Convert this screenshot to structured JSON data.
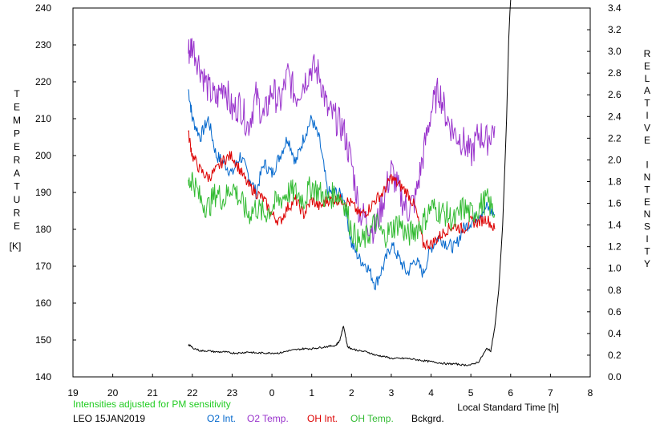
{
  "chart_data": {
    "type": "line",
    "xlabel": "Local Standard Time [h]",
    "ylabel_left_letters": [
      "T",
      "E",
      "M",
      "P",
      "E",
      "R",
      "A",
      "T",
      "U",
      "R",
      "E"
    ],
    "ylabel_left_unit": "[K]",
    "ylabel_right_letters": [
      "R",
      "E",
      "L",
      "A",
      "T",
      "I",
      "V",
      "E",
      "",
      "I",
      "N",
      "T",
      "E",
      "N",
      "S",
      "I",
      "T",
      "Y"
    ],
    "x_ticks": [
      "19",
      "20",
      "21",
      "22",
      "23",
      "0",
      "1",
      "2",
      "3",
      "4",
      "5",
      "6",
      "7",
      "8"
    ],
    "y_left_ticks": [
      "140",
      "150",
      "160",
      "170",
      "180",
      "190",
      "200",
      "210",
      "220",
      "230",
      "240"
    ],
    "y_right_ticks": [
      "0.0",
      "0.2",
      "0.4",
      "0.6",
      "0.8",
      "1.0",
      "1.2",
      "1.4",
      "1.6",
      "1.8",
      "2.0",
      "2.2",
      "2.4",
      "2.6",
      "2.8",
      "3.0",
      "3.2",
      "3.4"
    ],
    "xlim": [
      19,
      32
    ],
    "ylim_left": [
      140,
      240
    ],
    "ylim_right": [
      0,
      3.4
    ],
    "grid": false,
    "note": "Intensities adjusted for PM sensitivity",
    "station_date": "LEO 15JAN2019",
    "series": [
      {
        "name": "O2 Int.",
        "color": "#0066cc",
        "axis": "left",
        "x": [
          21.9,
          22.0,
          22.2,
          22.4,
          22.6,
          22.8,
          23.0,
          23.2,
          23.4,
          23.6,
          23.8,
          24.0,
          24.2,
          24.4,
          24.6,
          24.8,
          25.0,
          25.2,
          25.4,
          25.6,
          25.8,
          26.0,
          26.2,
          26.4,
          26.6,
          26.8,
          27.0,
          27.2,
          27.4,
          27.6,
          27.8,
          28.0,
          28.2,
          28.4,
          28.6,
          28.8,
          29.0,
          29.2,
          29.4,
          29.6
        ],
        "y": [
          218,
          210,
          205,
          210,
          200,
          198,
          195,
          200,
          195,
          190,
          198,
          195,
          200,
          205,
          198,
          205,
          210,
          204,
          190,
          190,
          189,
          176,
          172,
          170,
          165,
          170,
          176,
          172,
          168,
          172,
          168,
          175,
          178,
          176,
          175,
          180,
          182,
          184,
          186,
          184
        ]
      },
      {
        "name": "O2 Temp.",
        "color": "#9933cc",
        "axis": "left",
        "x": [
          21.9,
          22.0,
          22.2,
          22.4,
          22.6,
          22.8,
          23.0,
          23.2,
          23.4,
          23.6,
          23.8,
          24.0,
          24.2,
          24.4,
          24.6,
          24.8,
          25.0,
          25.2,
          25.4,
          25.6,
          25.8,
          26.0,
          26.2,
          26.4,
          26.6,
          26.8,
          27.0,
          27.2,
          27.4,
          27.6,
          27.8,
          28.0,
          28.2,
          28.4,
          28.6,
          28.8,
          29.0,
          29.2,
          29.4,
          29.6
        ],
        "y": [
          228,
          230,
          224,
          218,
          215,
          220,
          212,
          214,
          208,
          216,
          210,
          218,
          214,
          222,
          216,
          220,
          224,
          222,
          212,
          210,
          207,
          198,
          185,
          182,
          180,
          188,
          196,
          190,
          185,
          188,
          200,
          212,
          218,
          210,
          206,
          204,
          200,
          206,
          204,
          208
        ]
      },
      {
        "name": "OH Int.",
        "color": "#dd0000",
        "axis": "left",
        "x": [
          21.9,
          22.0,
          22.2,
          22.4,
          22.6,
          22.8,
          23.0,
          23.2,
          23.4,
          23.6,
          23.8,
          24.0,
          24.2,
          24.4,
          24.6,
          24.8,
          25.0,
          25.2,
          25.4,
          25.6,
          25.8,
          26.0,
          26.2,
          26.4,
          26.6,
          26.8,
          27.0,
          27.2,
          27.4,
          27.6,
          27.8,
          28.0,
          28.2,
          28.4,
          28.6,
          28.8,
          29.0,
          29.2,
          29.4,
          29.6
        ],
        "y": [
          206,
          200,
          196,
          194,
          196,
          199,
          200,
          196,
          192,
          190,
          188,
          184,
          182,
          186,
          188,
          184,
          188,
          186,
          188,
          188,
          188,
          187,
          184,
          185,
          188,
          190,
          194,
          192,
          190,
          186,
          176,
          176,
          178,
          180,
          181,
          180,
          182,
          182,
          183,
          180
        ]
      },
      {
        "name": "OH Temp.",
        "color": "#33bb33",
        "axis": "left",
        "x": [
          21.9,
          22.0,
          22.2,
          22.4,
          22.6,
          22.8,
          23.0,
          23.2,
          23.4,
          23.6,
          23.8,
          24.0,
          24.2,
          24.4,
          24.6,
          24.8,
          25.0,
          25.2,
          25.4,
          25.6,
          25.8,
          26.0,
          26.2,
          26.4,
          26.6,
          26.8,
          27.0,
          27.2,
          27.4,
          27.6,
          27.8,
          28.0,
          28.2,
          28.4,
          28.6,
          28.8,
          29.0,
          29.2,
          29.4,
          29.6
        ],
        "y": [
          192,
          194,
          188,
          186,
          190,
          188,
          192,
          188,
          184,
          186,
          184,
          186,
          188,
          190,
          190,
          188,
          192,
          190,
          188,
          190,
          188,
          180,
          176,
          178,
          182,
          178,
          180,
          182,
          178,
          180,
          182,
          186,
          185,
          184,
          182,
          186,
          184,
          186,
          188,
          184
        ]
      },
      {
        "name": "Bckgrd.",
        "color": "#000000",
        "axis": "right",
        "x": [
          21.9,
          22.0,
          22.2,
          22.4,
          22.6,
          22.8,
          23.0,
          23.2,
          23.4,
          23.6,
          23.8,
          24.0,
          24.2,
          24.4,
          24.6,
          24.8,
          25.0,
          25.2,
          25.4,
          25.6,
          25.7,
          25.8,
          25.9,
          26.0,
          26.2,
          26.4,
          26.6,
          26.8,
          27.0,
          27.2,
          27.4,
          27.6,
          27.8,
          28.0,
          28.2,
          28.4,
          28.6,
          28.8,
          29.0,
          29.2,
          29.4,
          29.5,
          29.6,
          29.7,
          29.8,
          29.9,
          29.95,
          30.0
        ],
        "y": [
          0.3,
          0.27,
          0.24,
          0.24,
          0.23,
          0.23,
          0.22,
          0.22,
          0.23,
          0.22,
          0.22,
          0.22,
          0.22,
          0.24,
          0.25,
          0.26,
          0.26,
          0.27,
          0.28,
          0.29,
          0.33,
          0.47,
          0.28,
          0.26,
          0.24,
          0.23,
          0.2,
          0.19,
          0.17,
          0.17,
          0.17,
          0.16,
          0.15,
          0.14,
          0.13,
          0.12,
          0.12,
          0.11,
          0.11,
          0.14,
          0.26,
          0.24,
          0.45,
          0.8,
          1.4,
          2.4,
          3.1,
          3.5
        ]
      }
    ]
  }
}
